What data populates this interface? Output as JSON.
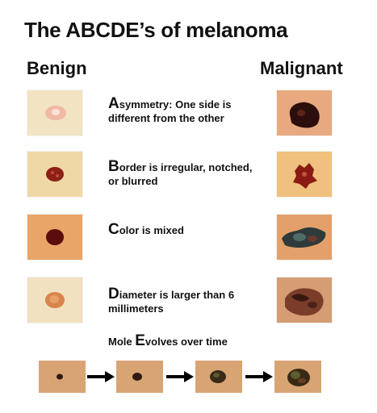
{
  "title": "The ABCDE’s of melanoma",
  "columns": {
    "benign": "Benign",
    "malignant": "Malignant"
  },
  "rules": [
    {
      "letter": "A",
      "rest": "symmetry:  One side is different from the other"
    },
    {
      "letter": "B",
      "rest": "order is irregular, notched, or blurred"
    },
    {
      "letter": "C",
      "rest": "olor is mixed"
    },
    {
      "letter": "D",
      "rest": "iameter is larger than 6 millimeters"
    }
  ],
  "evolve": {
    "before": "Mole ",
    "letter": "E",
    "after": "volves over time"
  },
  "colors": {
    "skin_light": "#f1dfb8",
    "skin_warm": "#e8b27c",
    "mole_dark": "#3a1a12",
    "mole_red": "#8a1a12",
    "arrow": "#000000"
  }
}
